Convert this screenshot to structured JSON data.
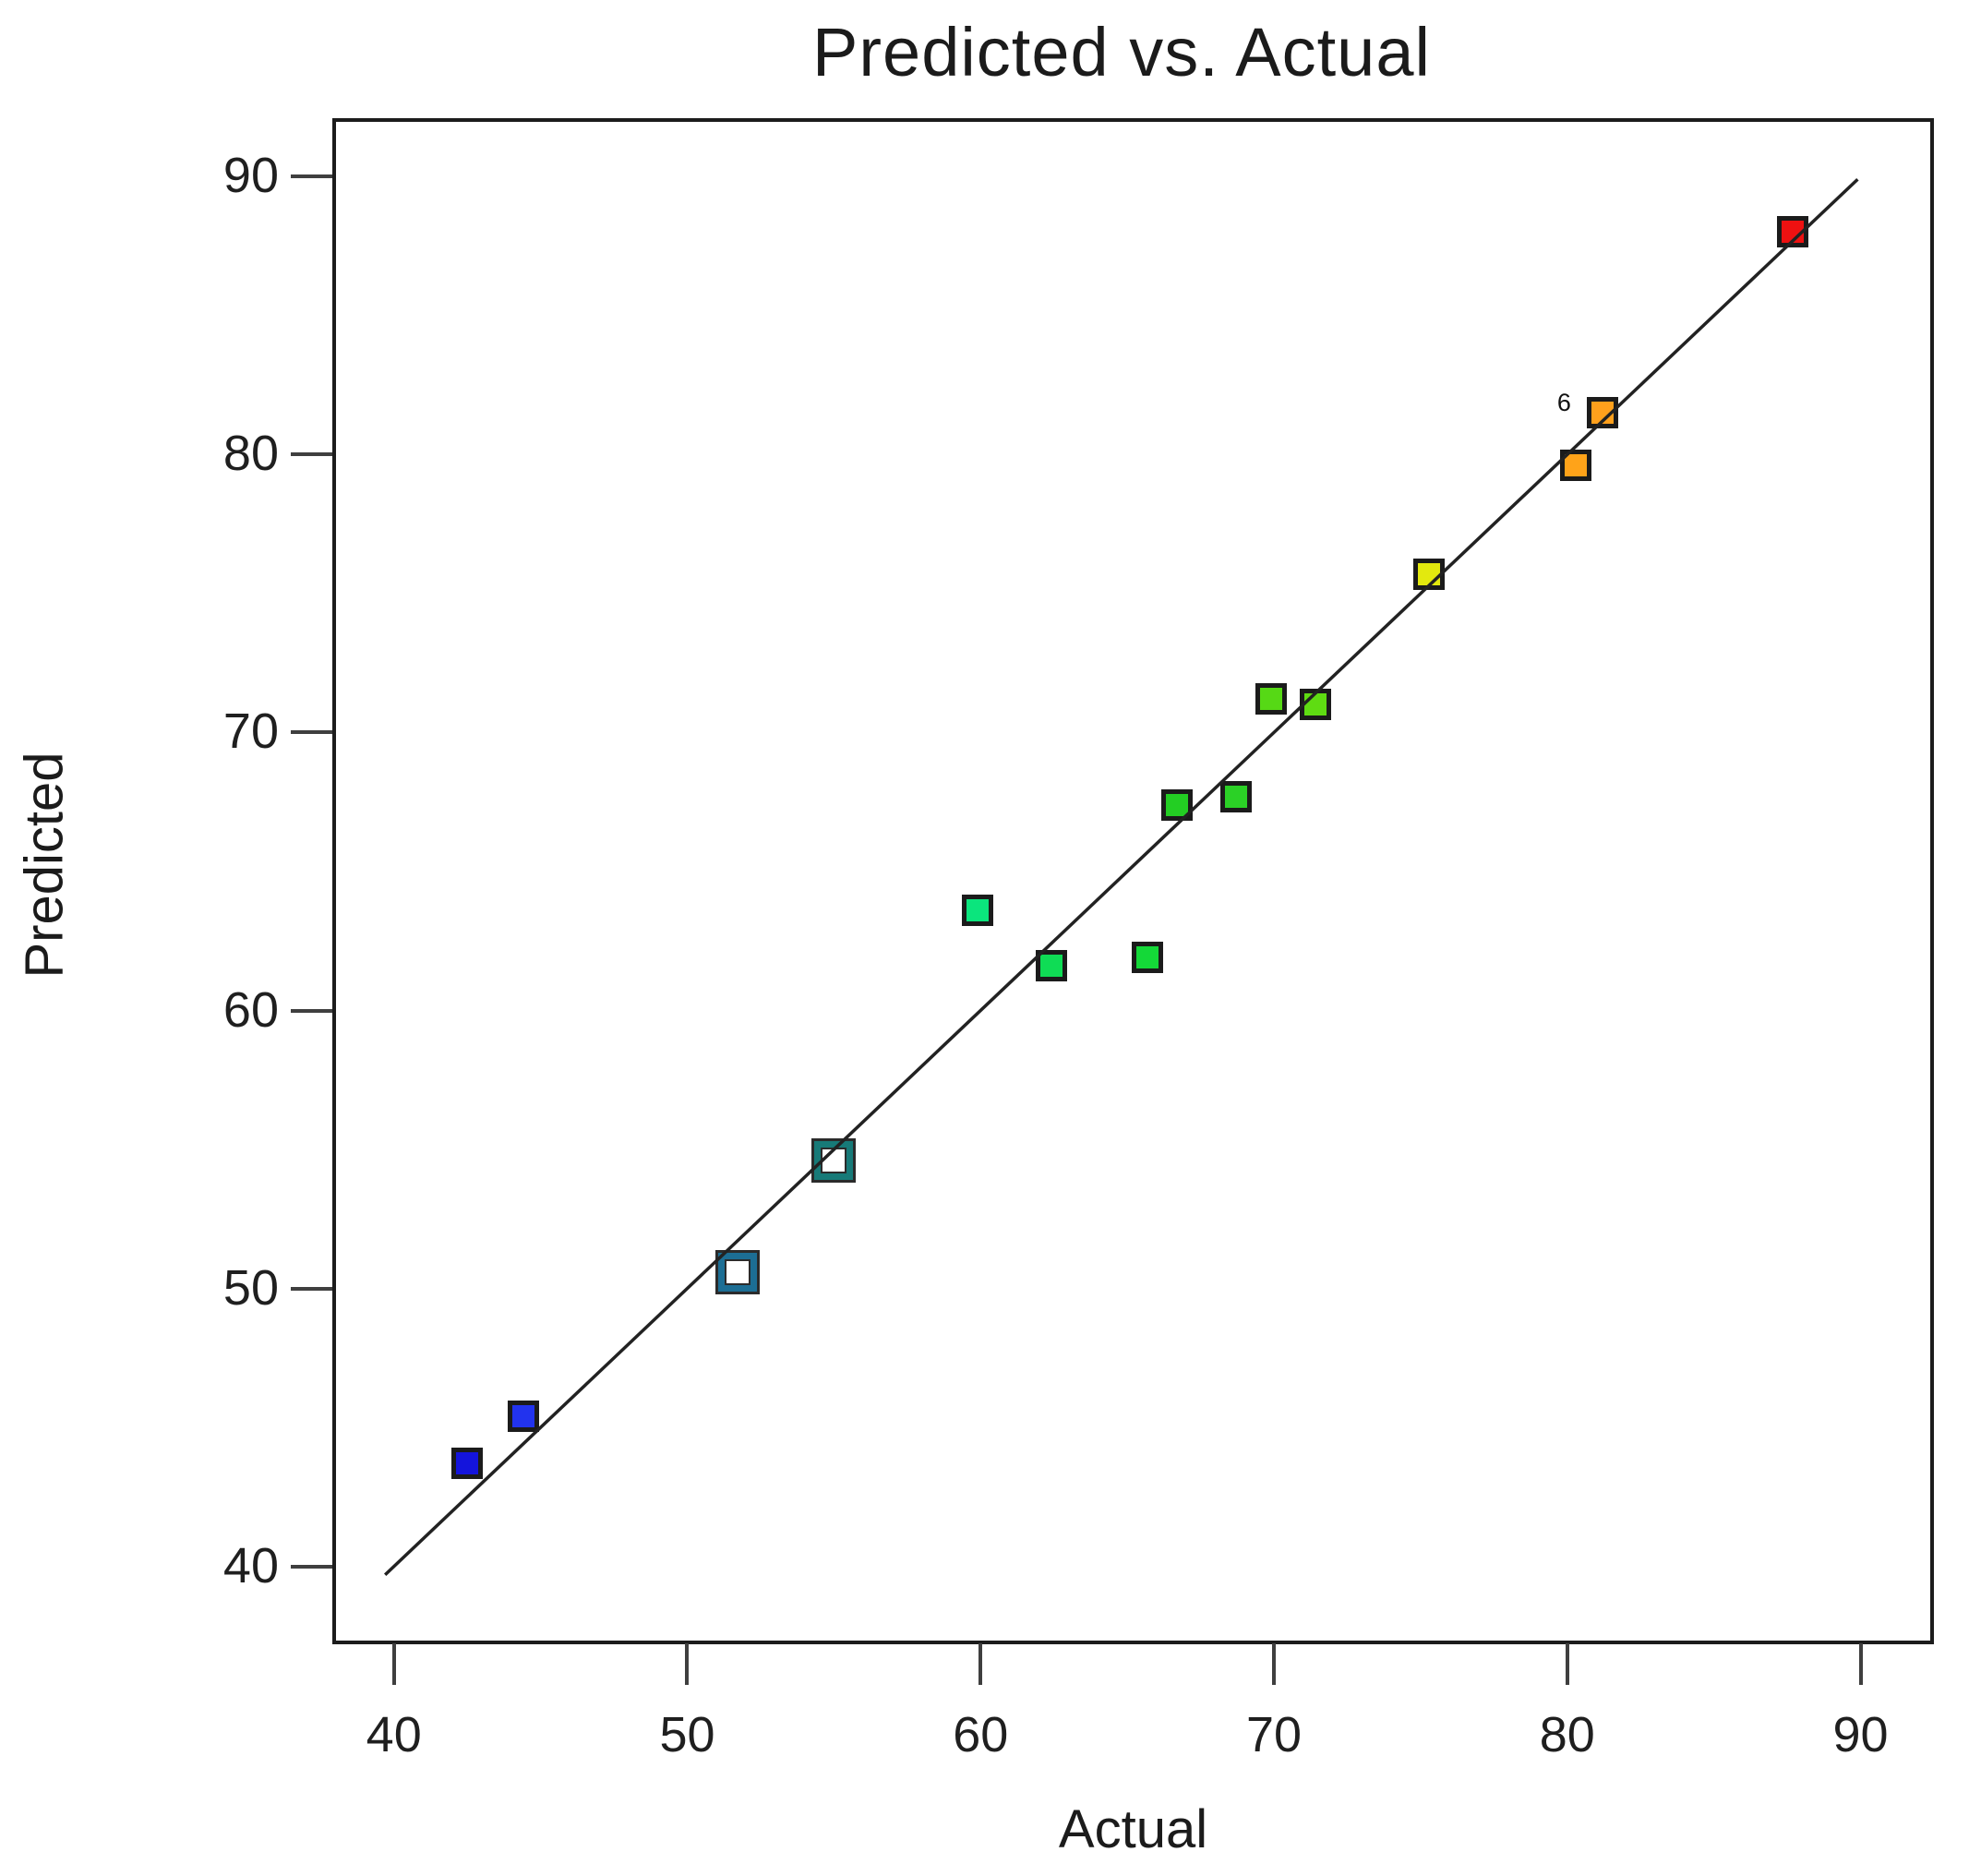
{
  "figure": {
    "title": "Predicted vs. Actual",
    "x_axis_label": "Actual",
    "y_axis_label": "Predicted"
  },
  "chart_data": {
    "type": "scatter",
    "title": "Predicted vs. Actual",
    "xlabel": "Actual",
    "ylabel": "Predicted",
    "xlim": [
      37.9,
      92.5
    ],
    "ylim": [
      37.2,
      92.1
    ],
    "x_ticks": [
      40,
      50,
      60,
      70,
      80,
      90
    ],
    "y_ticks": [
      40,
      50,
      60,
      70,
      80,
      90
    ],
    "grid": false,
    "legend_position": "none",
    "marker_shape": "square",
    "point_color_meaning": "response value gradient, blue = low to red = high",
    "identity_line": {
      "from": [
        39.7,
        39.7
      ],
      "to": [
        89.9,
        89.9
      ],
      "color": "#222222",
      "width": 3.5
    },
    "points": [
      {
        "actual": 42.5,
        "predicted": 43.7,
        "color": "#1414DC",
        "style": "filled"
      },
      {
        "actual": 44.4,
        "predicted": 45.4,
        "color": "#2233EE",
        "style": "filled"
      },
      {
        "actual": 51.7,
        "predicted": 50.6,
        "color": "#1C6E94",
        "style": "open"
      },
      {
        "actual": 55.0,
        "predicted": 54.6,
        "color": "#177A78",
        "style": "open"
      },
      {
        "actual": 59.9,
        "predicted": 63.6,
        "color": "#0BE57D",
        "style": "filled"
      },
      {
        "actual": 62.4,
        "predicted": 61.6,
        "color": "#0FDC55",
        "style": "filled"
      },
      {
        "actual": 65.7,
        "predicted": 61.9,
        "color": "#14D838",
        "style": "filled"
      },
      {
        "actual": 66.7,
        "predicted": 67.4,
        "color": "#23CE23",
        "style": "filled"
      },
      {
        "actual": 68.7,
        "predicted": 67.7,
        "color": "#2BD126",
        "style": "filled"
      },
      {
        "actual": 69.9,
        "predicted": 71.2,
        "color": "#56D915",
        "style": "filled"
      },
      {
        "actual": 71.4,
        "predicted": 71.0,
        "color": "#5FDC12",
        "style": "filled"
      },
      {
        "actual": 75.3,
        "predicted": 75.7,
        "color": "#E3E90E",
        "style": "filled"
      },
      {
        "actual": 80.3,
        "predicted": 79.6,
        "color": "#FFA319",
        "style": "filled"
      },
      {
        "actual": 81.2,
        "predicted": 81.5,
        "color": "#FFA01C",
        "style": "filled",
        "label": "6"
      },
      {
        "actual": 87.7,
        "predicted": 88.0,
        "color": "#EE1111",
        "style": "filled"
      }
    ]
  }
}
